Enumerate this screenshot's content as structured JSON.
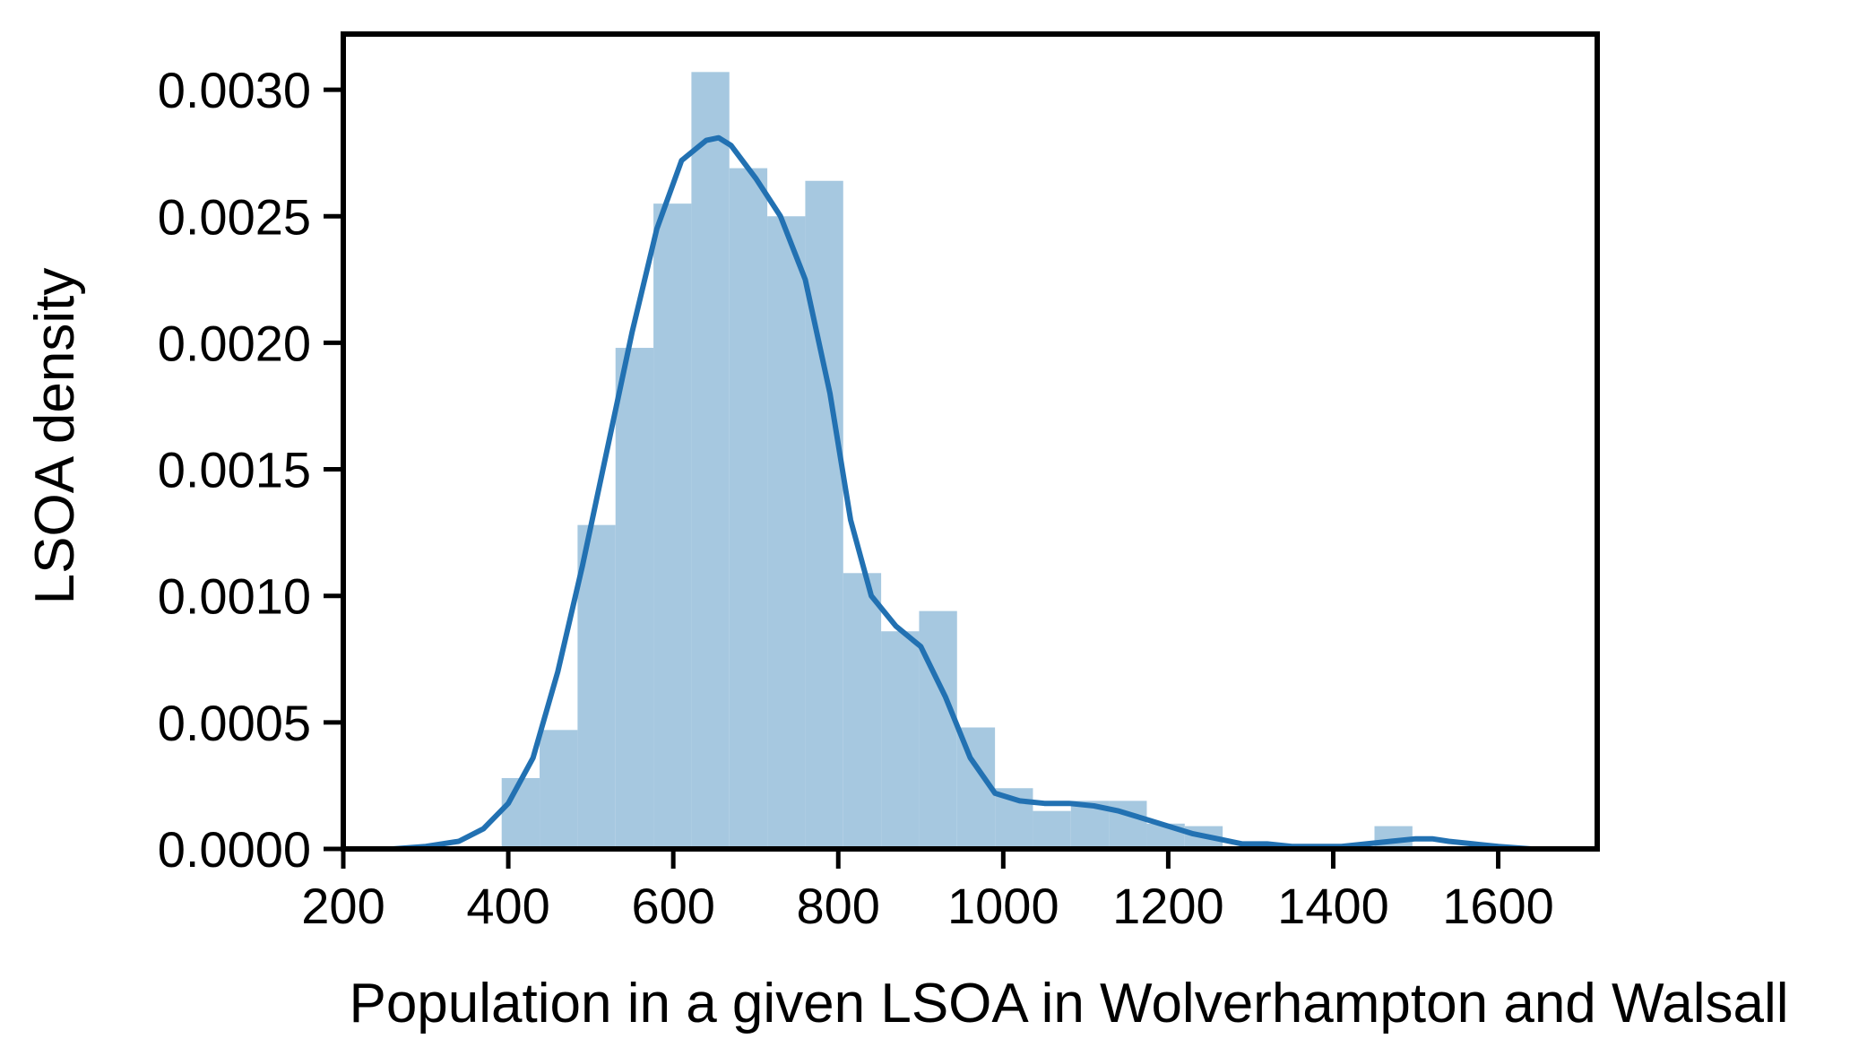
{
  "chart_data": {
    "type": "bar",
    "subtype": "histogram-with-kde",
    "xlabel": "Population in a given LSOA in Wolverhampton and Walsall",
    "ylabel": "LSOA density",
    "xlim": [
      200,
      1720
    ],
    "ylim": [
      0,
      0.00322
    ],
    "x_ticks": [
      200,
      400,
      600,
      800,
      1000,
      1200,
      1400,
      1600
    ],
    "y_ticks": [
      0.0,
      0.0005,
      0.001,
      0.0015,
      0.002,
      0.0025,
      0.003
    ],
    "x_tick_labels": [
      "200",
      "400",
      "600",
      "800",
      "1000",
      "1200",
      "1400",
      "1600"
    ],
    "y_tick_labels": [
      "0.0000",
      "0.0005",
      "0.0010",
      "0.0015",
      "0.0020",
      "0.0025",
      "0.0030"
    ],
    "bar_color": "#a6c8e0",
    "line_color": "#2271b2",
    "bins": [
      {
        "x0": 392,
        "x1": 438,
        "value": 0.00028
      },
      {
        "x0": 438,
        "x1": 484,
        "value": 0.00047
      },
      {
        "x0": 484,
        "x1": 530,
        "value": 0.00128
      },
      {
        "x0": 530,
        "x1": 576,
        "value": 0.00198
      },
      {
        "x0": 576,
        "x1": 622,
        "value": 0.00255
      },
      {
        "x0": 622,
        "x1": 668,
        "value": 0.00307
      },
      {
        "x0": 668,
        "x1": 714,
        "value": 0.00269
      },
      {
        "x0": 714,
        "x1": 760,
        "value": 0.0025
      },
      {
        "x0": 760,
        "x1": 806,
        "value": 0.00264
      },
      {
        "x0": 806,
        "x1": 852,
        "value": 0.00109
      },
      {
        "x0": 852,
        "x1": 898,
        "value": 0.00086
      },
      {
        "x0": 898,
        "x1": 944,
        "value": 0.00094
      },
      {
        "x0": 944,
        "x1": 990,
        "value": 0.00048
      },
      {
        "x0": 990,
        "x1": 1036,
        "value": 0.00024
      },
      {
        "x0": 1036,
        "x1": 1082,
        "value": 0.00015
      },
      {
        "x0": 1082,
        "x1": 1128,
        "value": 0.00019
      },
      {
        "x0": 1128,
        "x1": 1174,
        "value": 0.00019
      },
      {
        "x0": 1174,
        "x1": 1220,
        "value": 0.0001
      },
      {
        "x0": 1220,
        "x1": 1266,
        "value": 9e-05
      },
      {
        "x0": 1266,
        "x1": 1312,
        "value": 0.0
      },
      {
        "x0": 1312,
        "x1": 1358,
        "value": 0.0
      },
      {
        "x0": 1358,
        "x1": 1404,
        "value": 0.0
      },
      {
        "x0": 1404,
        "x1": 1450,
        "value": 0.0
      },
      {
        "x0": 1450,
        "x1": 1496,
        "value": 9e-05
      },
      {
        "x0": 1496,
        "x1": 1542,
        "value": 0.0
      }
    ],
    "kde": {
      "x": [
        260,
        300,
        340,
        370,
        400,
        430,
        460,
        490,
        520,
        550,
        580,
        610,
        640,
        655,
        670,
        700,
        730,
        760,
        790,
        815,
        840,
        870,
        900,
        930,
        960,
        990,
        1020,
        1050,
        1080,
        1110,
        1140,
        1170,
        1200,
        1230,
        1260,
        1290,
        1320,
        1350,
        1380,
        1410,
        1440,
        1470,
        1500,
        1520,
        1540,
        1570,
        1600,
        1640,
        1660
      ],
      "y": [
        0.0,
        1e-05,
        3e-05,
        8e-05,
        0.00018,
        0.00036,
        0.0007,
        0.00112,
        0.00158,
        0.00204,
        0.00245,
        0.00272,
        0.0028,
        0.00281,
        0.00278,
        0.00265,
        0.0025,
        0.00225,
        0.0018,
        0.0013,
        0.001,
        0.00088,
        0.0008,
        0.0006,
        0.00036,
        0.00022,
        0.00019,
        0.00018,
        0.00018,
        0.00017,
        0.00015,
        0.00012,
        9e-05,
        6e-05,
        4e-05,
        2e-05,
        2e-05,
        1e-05,
        1e-05,
        1e-05,
        2e-05,
        3e-05,
        4e-05,
        4e-05,
        3e-05,
        2e-05,
        1e-05,
        0.0,
        0.0
      ]
    }
  }
}
